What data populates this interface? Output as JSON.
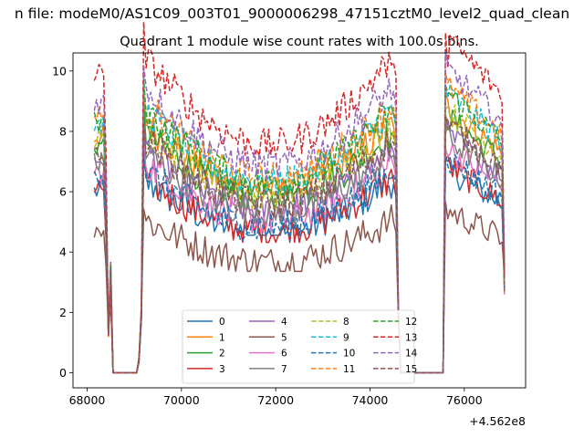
{
  "suptitle": "n file: modeM0/AS1C09_003T01_9000006298_47151cztM0_level2_quad_clean",
  "chart_data": {
    "type": "line",
    "title": "Quadrant 1 module wise count rates with 100.0s bins.",
    "xlabel": "",
    "ylabel": "",
    "x_offset_label": "+4.562e8",
    "xlim": [
      67700,
      77300
    ],
    "ylim": [
      -0.5,
      10.6
    ],
    "x_ticks": [
      68000,
      70000,
      72000,
      74000,
      76000
    ],
    "x_tick_labels": [
      "68000",
      "70000",
      "72000",
      "74000",
      "76000"
    ],
    "y_ticks": [
      0,
      2,
      4,
      6,
      8,
      10
    ],
    "y_tick_labels": [
      "0",
      "2",
      "4",
      "6",
      "8",
      "10"
    ],
    "grid": false,
    "legend": {
      "placement": "lower center",
      "columns": 4
    },
    "x_start": 68150,
    "x_step": 50,
    "series": [
      {
        "name": "0",
        "color": "#1f77b4",
        "dash": "solid",
        "base": 5.7,
        "level": 5.9
      },
      {
        "name": "1",
        "color": "#ff7f0e",
        "dash": "solid",
        "base": 7.4,
        "level": 7.7
      },
      {
        "name": "2",
        "color": "#2ca02c",
        "dash": "solid",
        "base": 6.6,
        "level": 7.4
      },
      {
        "name": "3",
        "color": "#d62728",
        "dash": "solid",
        "base": 5.4,
        "level": 6.0
      },
      {
        "name": "4",
        "color": "#9467bd",
        "dash": "solid",
        "base": 6.3,
        "level": 6.9
      },
      {
        "name": "5",
        "color": "#8c564b",
        "dash": "solid",
        "base": 4.2,
        "level": 4.7
      },
      {
        "name": "6",
        "color": "#e377c2",
        "dash": "solid",
        "base": 5.8,
        "level": 6.5
      },
      {
        "name": "7",
        "color": "#7f7f7f",
        "dash": "solid",
        "base": 6.2,
        "level": 6.8
      },
      {
        "name": "8",
        "color": "#bcbd22",
        "dash": "dashed",
        "base": 6.8,
        "level": 7.6
      },
      {
        "name": "9",
        "color": "#17becf",
        "dash": "dashed",
        "base": 7.2,
        "level": 8.1
      },
      {
        "name": "10",
        "color": "#1f77b4",
        "dash": "dashed",
        "base": 5.3,
        "level": 6.2
      },
      {
        "name": "11",
        "color": "#ff7f0e",
        "dash": "dashed",
        "base": 7.5,
        "level": 8.3
      },
      {
        "name": "12",
        "color": "#2ca02c",
        "dash": "dashed",
        "base": 7.2,
        "level": 8.1
      },
      {
        "name": "13",
        "color": "#d62728",
        "dash": "dashed",
        "base": 8.2,
        "level": 9.7
      },
      {
        "name": "14",
        "color": "#9467bd",
        "dash": "dashed",
        "base": 7.8,
        "level": 8.8
      },
      {
        "name": "15",
        "color": "#8c564b",
        "dash": "dashed",
        "base": 6.4,
        "level": 7.2
      }
    ],
    "profile": {
      "note_only_for_script": "segments of the light curve",
      "on1": [
        68150,
        68350
      ],
      "drop1": [
        68450,
        68550
      ],
      "zero1": [
        68550,
        69050
      ],
      "rise1": [
        69150,
        69250
      ],
      "on2": [
        69250,
        74500
      ],
      "zero2": [
        74650,
        75550
      ],
      "on3": [
        75650,
        76800
      ],
      "end": [
        76850,
        76850
      ]
    }
  }
}
